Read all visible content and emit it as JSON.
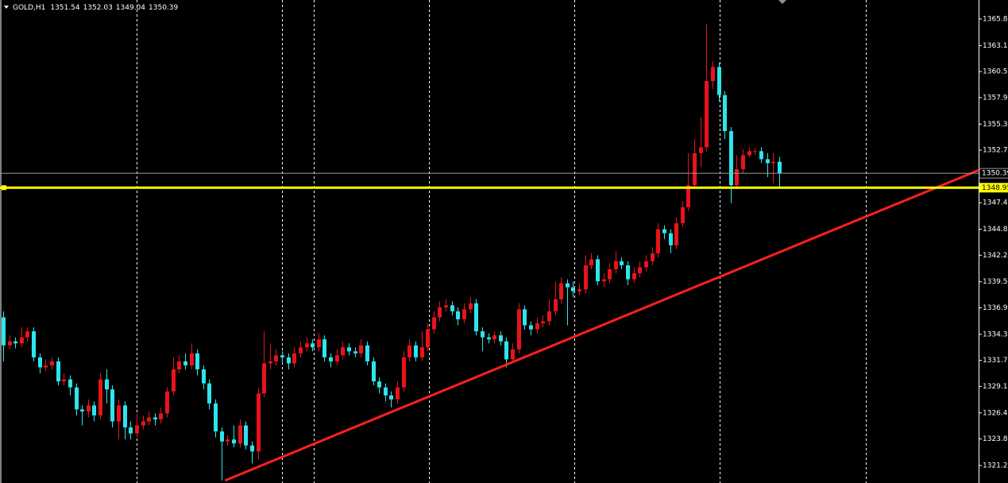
{
  "chart_data": {
    "type": "candlestick",
    "symbol": "GOLD,H1",
    "open": [
      1336.0,
      1333.2,
      1333.6,
      1333.4,
      1334.0,
      1334.6,
      1332.0,
      1331.0,
      1331.2,
      1331.6,
      1329.6,
      1329.8,
      1329.0,
      1326.8,
      1326.6,
      1327.2,
      1326.2,
      1329.8,
      1328.8,
      1325.6,
      1327.2,
      1325.0,
      1324.4,
      1325.2,
      1325.6,
      1326.0,
      1325.8,
      1326.4,
      1328.6,
      1330.8,
      1331.6,
      1331.2,
      1332.4,
      1330.8,
      1329.4,
      1327.4,
      1324.6,
      1323.6,
      1323.8,
      1323.4,
      1325.2,
      1323.2,
      1322.6,
      1328.4,
      1331.4,
      1331.6,
      1332.2,
      1332.0,
      1331.4,
      1332.4,
      1333.0,
      1333.4,
      1333.0,
      1333.8,
      1332.0,
      1331.6,
      1332.2,
      1333.0,
      1332.6,
      1332.4,
      1333.2,
      1331.6,
      1329.6,
      1329.0,
      1328.2,
      1327.8,
      1329.0,
      1332.0,
      1333.2,
      1332.0,
      1333.0,
      1334.8,
      1336.0,
      1337.0,
      1337.2,
      1336.6,
      1335.8,
      1336.8,
      1337.4,
      1334.6,
      1334.0,
      1333.8,
      1334.2,
      1333.6,
      1331.8,
      1332.8,
      1336.8,
      1335.2,
      1334.8,
      1335.4,
      1335.6,
      1336.6,
      1337.8,
      1339.4,
      1339.0,
      1338.6,
      1338.8,
      1341.2,
      1341.8,
      1339.6,
      1339.8,
      1340.8,
      1341.6,
      1341.2,
      1339.8,
      1340.4,
      1341.0,
      1341.6,
      1342.4,
      1344.8,
      1344.4,
      1343.2,
      1345.4,
      1347.0,
      1349.2,
      1352.4,
      1353.0,
      1359.6,
      1361.0,
      1358.2,
      1354.6,
      1349.2,
      1350.8,
      1352.2,
      1352.6,
      1352.6,
      1351.8,
      1351.4,
      1351.54
    ],
    "high": [
      1336.6,
      1334.2,
      1334.0,
      1335.0,
      1335.0,
      1335.0,
      1332.4,
      1331.8,
      1332.0,
      1332.0,
      1330.4,
      1330.2,
      1329.4,
      1327.2,
      1327.8,
      1327.6,
      1330.4,
      1330.8,
      1329.2,
      1327.8,
      1327.6,
      1325.6,
      1326.4,
      1326.2,
      1326.6,
      1326.4,
      1327.0,
      1329.0,
      1332.0,
      1332.2,
      1332.4,
      1333.4,
      1332.8,
      1331.2,
      1329.8,
      1327.8,
      1325.0,
      1324.2,
      1325.2,
      1325.8,
      1325.6,
      1323.6,
      1329.0,
      1334.6,
      1333.4,
      1332.8,
      1332.6,
      1332.4,
      1333.0,
      1333.6,
      1334.0,
      1333.8,
      1334.4,
      1334.2,
      1332.4,
      1332.8,
      1333.6,
      1333.4,
      1333.0,
      1333.8,
      1333.6,
      1332.0,
      1330.0,
      1329.4,
      1328.6,
      1329.6,
      1332.6,
      1333.8,
      1333.6,
      1334.6,
      1335.4,
      1336.6,
      1337.6,
      1337.8,
      1337.6,
      1337.0,
      1337.4,
      1338.0,
      1337.8,
      1335.0,
      1334.4,
      1334.6,
      1334.6,
      1334.0,
      1333.4,
      1337.4,
      1337.2,
      1335.6,
      1336.0,
      1336.2,
      1337.8,
      1339.6,
      1340.0,
      1339.8,
      1339.6,
      1339.4,
      1342.2,
      1342.4,
      1342.2,
      1340.4,
      1341.4,
      1342.6,
      1342.0,
      1341.6,
      1341.0,
      1341.6,
      1342.2,
      1343.0,
      1345.4,
      1345.2,
      1344.8,
      1346.0,
      1347.6,
      1352.4,
      1353.8,
      1356.0,
      1365.3,
      1361.6,
      1361.4,
      1358.6,
      1355.0,
      1352.2,
      1352.8,
      1353.0,
      1352.9,
      1353.0,
      1352.4,
      1352.4,
      1352.03
    ],
    "low": [
      1331.6,
      1332.8,
      1332.9,
      1333.0,
      1333.6,
      1331.6,
      1330.4,
      1330.6,
      1330.8,
      1329.2,
      1329.2,
      1328.2,
      1326.2,
      1325.2,
      1326.0,
      1325.6,
      1325.8,
      1327.4,
      1325.0,
      1323.8,
      1323.8,
      1323.8,
      1324.0,
      1324.8,
      1325.2,
      1325.2,
      1325.4,
      1326.0,
      1328.2,
      1330.4,
      1330.8,
      1330.8,
      1330.2,
      1328.8,
      1326.8,
      1324.0,
      1319.7,
      1323.2,
      1323.0,
      1323.0,
      1322.8,
      1321.4,
      1321.8,
      1328.0,
      1330.8,
      1331.2,
      1331.4,
      1330.8,
      1331.0,
      1332.0,
      1332.6,
      1332.6,
      1332.6,
      1331.6,
      1331.0,
      1331.2,
      1331.8,
      1332.2,
      1332.0,
      1332.0,
      1331.2,
      1329.2,
      1328.4,
      1327.6,
      1327.0,
      1327.4,
      1328.6,
      1331.6,
      1331.6,
      1331.6,
      1332.6,
      1334.4,
      1335.6,
      1336.6,
      1336.2,
      1335.2,
      1335.4,
      1336.4,
      1334.2,
      1332.6,
      1333.4,
      1333.4,
      1333.2,
      1331.0,
      1331.4,
      1332.4,
      1334.8,
      1334.2,
      1334.4,
      1335.0,
      1335.2,
      1336.2,
      1337.4,
      1335.2,
      1338.0,
      1338.2,
      1338.4,
      1340.8,
      1339.2,
      1339.0,
      1339.4,
      1340.4,
      1340.8,
      1339.2,
      1339.4,
      1340.0,
      1340.6,
      1341.2,
      1342.0,
      1343.8,
      1342.4,
      1342.8,
      1345.0,
      1346.6,
      1348.8,
      1351.0,
      1352.6,
      1358.8,
      1357.6,
      1353.8,
      1347.4,
      1348.8,
      1350.4,
      1352.0,
      1352.2,
      1351.4,
      1350.0,
      1349.4,
      1349.04
    ],
    "close": [
      1333.2,
      1333.6,
      1333.4,
      1334.0,
      1334.6,
      1332.0,
      1331.0,
      1331.2,
      1331.6,
      1329.6,
      1329.8,
      1329.0,
      1326.8,
      1326.6,
      1327.2,
      1326.2,
      1329.8,
      1328.8,
      1325.6,
      1327.2,
      1325.0,
      1324.4,
      1325.2,
      1325.6,
      1326.0,
      1325.8,
      1326.4,
      1328.6,
      1330.8,
      1331.6,
      1331.2,
      1332.4,
      1330.8,
      1329.4,
      1327.4,
      1324.6,
      1323.6,
      1323.8,
      1323.4,
      1325.2,
      1323.2,
      1322.6,
      1328.4,
      1331.4,
      1331.6,
      1332.2,
      1332.0,
      1331.4,
      1332.4,
      1333.0,
      1333.4,
      1333.0,
      1333.8,
      1332.0,
      1331.6,
      1332.2,
      1333.0,
      1332.6,
      1332.4,
      1333.2,
      1331.6,
      1329.6,
      1329.0,
      1328.2,
      1327.8,
      1329.0,
      1332.0,
      1333.2,
      1332.0,
      1333.0,
      1334.8,
      1336.0,
      1337.0,
      1337.2,
      1336.6,
      1335.8,
      1336.8,
      1337.4,
      1334.6,
      1334.0,
      1333.8,
      1334.2,
      1333.6,
      1331.8,
      1332.8,
      1336.8,
      1335.2,
      1334.8,
      1335.4,
      1335.6,
      1336.6,
      1337.8,
      1339.4,
      1339.0,
      1338.6,
      1338.8,
      1341.2,
      1341.8,
      1339.6,
      1339.8,
      1340.8,
      1341.6,
      1341.2,
      1339.8,
      1340.4,
      1341.0,
      1341.6,
      1342.4,
      1344.8,
      1344.4,
      1343.2,
      1345.4,
      1347.0,
      1349.2,
      1352.4,
      1353.0,
      1359.6,
      1361.0,
      1358.2,
      1354.6,
      1349.2,
      1350.8,
      1352.2,
      1352.6,
      1352.6,
      1351.8,
      1351.4,
      1351.54,
      1350.39
    ],
    "up_color": "#e8141c",
    "down_color": "#2ee4ec",
    "xlim": [
      -0.52,
      160.9
    ],
    "xgrid": [
      22.0,
      46.0,
      51.2,
      70.2,
      94.2,
      118.2,
      142.3
    ],
    "ylim": [
      1319.45,
      1367.7
    ],
    "yticks": [
      {
        "value": 1365.8,
        "label": "1365.80"
      },
      {
        "value": 1363.15,
        "label": "1363.15"
      },
      {
        "value": 1360.55,
        "label": "1360.55"
      },
      {
        "value": 1357.95,
        "label": "1357.95"
      },
      {
        "value": 1355.3,
        "label": "1355.30"
      },
      {
        "value": 1352.7,
        "label": "1352.70"
      },
      {
        "value": 1347.45,
        "label": "1347.45"
      },
      {
        "value": 1344.8,
        "label": "1344.80"
      },
      {
        "value": 1342.2,
        "label": "1342.20"
      },
      {
        "value": 1339.55,
        "label": "1339.55"
      },
      {
        "value": 1336.95,
        "label": "1336.95"
      },
      {
        "value": 1334.3,
        "label": "1334.30"
      },
      {
        "value": 1331.7,
        "label": "1331.70"
      },
      {
        "value": 1329.1,
        "label": "1329.10"
      },
      {
        "value": 1326.45,
        "label": "1326.45"
      },
      {
        "value": 1323.85,
        "label": "1323.85"
      },
      {
        "value": 1321.2,
        "label": "1321.20"
      }
    ],
    "hline": {
      "value": 1348.95,
      "color": "#ffff00"
    },
    "trendline": {
      "color": "#ff2020",
      "x": [
        36.6,
        160.9
      ],
      "y": [
        1319.7,
        1350.7
      ]
    }
  }
}
